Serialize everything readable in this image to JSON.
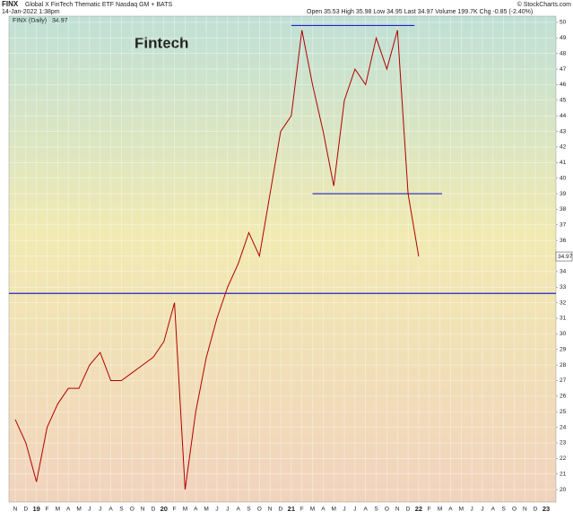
{
  "header": {
    "symbol": "FINX",
    "name": "Global X FinTech Thematic ETF  Nasdaq GM + BATS",
    "datetime": "14-Jan-2022 1:38pm",
    "quote": "Open 35.53  High 35.98  Low 34.95  Last 34.97  Volume 199.7K  Chg -0.85 (-2.40%)",
    "credit": "© StockCharts.com"
  },
  "chart_data": {
    "type": "line",
    "annotation": "Fintech",
    "categories": [
      "N",
      "D",
      "19",
      "F",
      "M",
      "A",
      "M",
      "J",
      "J",
      "A",
      "S",
      "O",
      "N",
      "D",
      "20",
      "F",
      "M",
      "A",
      "M",
      "J",
      "J",
      "A",
      "S",
      "O",
      "N",
      "D",
      "21",
      "F",
      "M",
      "A",
      "M",
      "J",
      "J",
      "A",
      "S",
      "O",
      "N",
      "D",
      "22",
      "F",
      "M",
      "A",
      "M",
      "J",
      "J",
      "A",
      "S",
      "O",
      "N",
      "D",
      "23"
    ],
    "series": [
      {
        "name": "FINX (Daily)",
        "color": "#b00000",
        "values": [
          24.5,
          23,
          20.5,
          24,
          25.5,
          26.5,
          26.5,
          28,
          28.8,
          27,
          27,
          27.5,
          28,
          28.5,
          29.5,
          32,
          20,
          25,
          28.5,
          31,
          33,
          34.5,
          36.5,
          35,
          39,
          43,
          44,
          49.5,
          46,
          43,
          39.5,
          45,
          47,
          46,
          49,
          47,
          49.5,
          39,
          34.97,
          null,
          null,
          null,
          null,
          null,
          null,
          null,
          null,
          null,
          null,
          null,
          null
        ]
      }
    ],
    "reference_lines": [
      49.8,
      39,
      32.6
    ],
    "ylim": [
      19.2,
      50.4
    ],
    "yticks": [
      20,
      21,
      22,
      23,
      24,
      25,
      26,
      27,
      28,
      29,
      30,
      31,
      32,
      33,
      34,
      35,
      36,
      37,
      38,
      39,
      40,
      41,
      42,
      43,
      44,
      45,
      46,
      47,
      48,
      49,
      50
    ],
    "grid": true
  }
}
